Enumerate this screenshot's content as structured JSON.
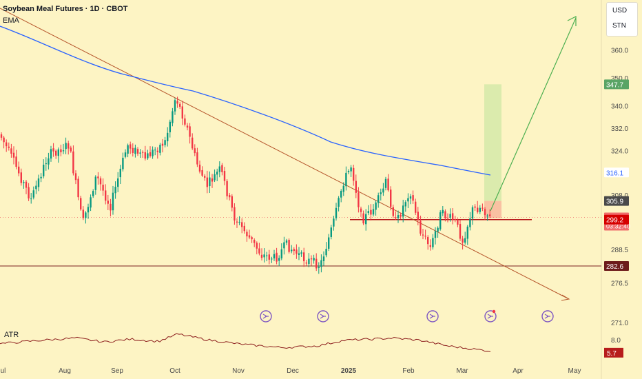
{
  "header": {
    "title": "Soybean Meal Futures · 1D · CBOT",
    "indicator": "EMA",
    "sub_indicator": "ATR"
  },
  "units": {
    "currency": "USD",
    "unit": "STN"
  },
  "chart_data": {
    "type": "candlestick",
    "price_axis": {
      "ticks": [
        "360.0",
        "350.0",
        "340.0",
        "332.0",
        "324.0",
        "308.0",
        "288.5",
        "276.5",
        "271.0"
      ],
      "tick_values": [
        360.0,
        350.0,
        340.0,
        332.0,
        324.0,
        308.0,
        288.5,
        276.5,
        271.0
      ]
    },
    "atr_axis": {
      "ticks": [
        "8.0"
      ],
      "tick_values": [
        8.0
      ],
      "range": [
        4.5,
        9.0
      ]
    },
    "time_axis": {
      "labels": [
        "Jul",
        "Aug",
        "Sep",
        "Oct",
        "Nov",
        "Dec",
        "2025",
        "Feb",
        "Mar",
        "Apr",
        "May"
      ]
    },
    "price_badges": [
      {
        "value": "347.7",
        "price": 347.7,
        "color": "#5aa465",
        "text_color": "#ffffff"
      },
      {
        "value": "316.1",
        "price": 316.1,
        "color": "#ffffff",
        "text_color": "#2962ff"
      },
      {
        "value": "305.9",
        "price": 305.9,
        "color": "#4a4a4a",
        "text_color": "#ffffff"
      },
      {
        "value": "300.0",
        "price": 300.0,
        "color": "#f06b6b",
        "text_color": "#ffffff",
        "countdown": "03:32:40"
      },
      {
        "value": "299.2",
        "price": 299.2,
        "color": "#d50000",
        "text_color": "#ffffff"
      },
      {
        "value": "282.6",
        "price": 282.6,
        "color": "#6d1b1b",
        "text_color": "#ffffff"
      }
    ],
    "atr_badge": {
      "value": "5.7",
      "atr": 5.7,
      "color": "#b71c1c"
    },
    "levels": {
      "support": 299.2,
      "resistance_low": 282.6,
      "last": 300.0
    },
    "targets": {
      "take_profit": 347.7,
      "entry": 305.9,
      "stop": 300.0
    },
    "colors": {
      "up": "#089981",
      "down": "#f23645",
      "ema": "#2962ff",
      "trendline": "#b5542a",
      "projection": "#4caf50",
      "event": "#7e57c2"
    },
    "event_markers": 5
  }
}
